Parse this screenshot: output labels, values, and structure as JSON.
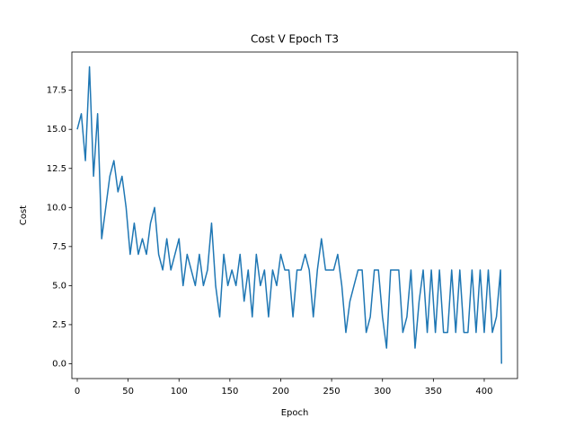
{
  "chart_data": {
    "type": "line",
    "title": "Cost V Epoch T3",
    "x_label": "Epoch",
    "y_label": "Cost",
    "x": [
      0,
      4,
      8,
      12,
      16,
      20,
      24,
      28,
      32,
      36,
      40,
      44,
      48,
      52,
      56,
      60,
      64,
      68,
      72,
      76,
      80,
      84,
      88,
      92,
      96,
      100,
      104,
      108,
      112,
      116,
      120,
      124,
      128,
      132,
      136,
      140,
      144,
      148,
      152,
      156,
      160,
      164,
      168,
      172,
      176,
      180,
      184,
      188,
      192,
      196,
      200,
      204,
      208,
      212,
      216,
      220,
      224,
      228,
      232,
      236,
      240,
      244,
      248,
      252,
      256,
      260,
      264,
      268,
      272,
      276,
      280,
      284,
      288,
      292,
      296,
      300,
      304,
      308,
      312,
      316,
      320,
      324,
      328,
      332,
      336,
      340,
      344,
      348,
      352,
      356,
      360,
      364,
      368,
      372,
      376,
      380,
      384,
      388,
      392,
      396,
      400,
      404,
      408,
      412,
      416,
      417
    ],
    "series": [
      {
        "name": "Cost",
        "color": "#1f77b4",
        "values": [
          15,
          16,
          13,
          19,
          12,
          16,
          8,
          10,
          12,
          13,
          11,
          12,
          10,
          7,
          9,
          7,
          8,
          7,
          9,
          10,
          7,
          6,
          8,
          6,
          7,
          8,
          5,
          7,
          6,
          5,
          7,
          5,
          6,
          9,
          5,
          3,
          7,
          5,
          6,
          5,
          7,
          4,
          6,
          3,
          7,
          5,
          6,
          3,
          6,
          5,
          7,
          6,
          6,
          3,
          6,
          6,
          7,
          6,
          3,
          6,
          8,
          6,
          6,
          6,
          7,
          5,
          2,
          4,
          5,
          6,
          6,
          2,
          3,
          6,
          6,
          3,
          1,
          6,
          6,
          6,
          2,
          3,
          6,
          1,
          4,
          6,
          2,
          6,
          2,
          6,
          2,
          2,
          6,
          2,
          6,
          2,
          2,
          6,
          2,
          6,
          2,
          6,
          2,
          3,
          6,
          0
        ]
      }
    ],
    "xlim": [
      -5.3,
      432.7
    ],
    "ylim": [
      -0.95,
      19.95
    ],
    "xticks": [
      0,
      50,
      100,
      150,
      200,
      250,
      300,
      350,
      400
    ],
    "yticks": [
      {
        "value": 0,
        "label": "0.0"
      },
      2.5,
      {
        "value": 5,
        "label": "5.0"
      },
      7.5,
      {
        "value": 10,
        "label": "10.0"
      },
      12.5,
      {
        "value": 15,
        "label": "15.0"
      },
      17.5
    ]
  }
}
